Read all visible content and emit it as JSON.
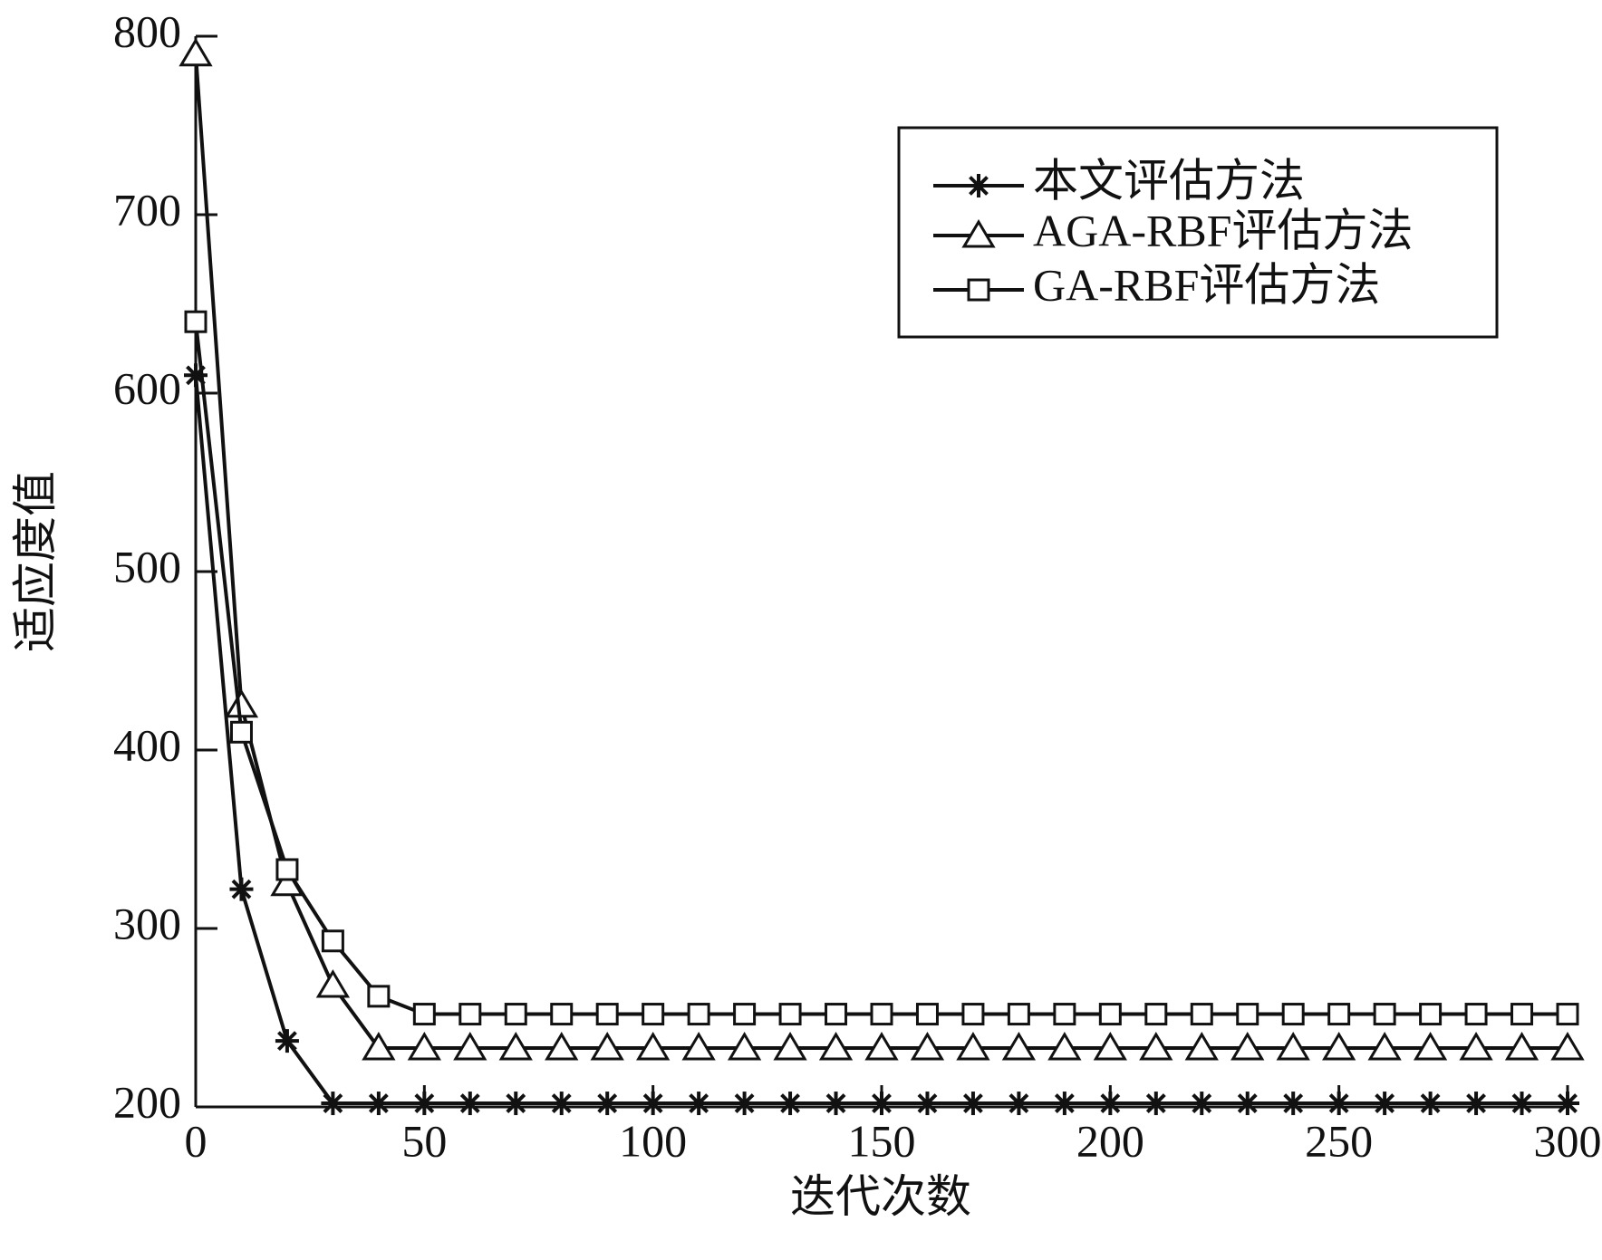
{
  "chart_data": {
    "type": "line",
    "xlabel": "迭代次数",
    "ylabel": "适应度值",
    "xlim": [
      0,
      300
    ],
    "ylim": [
      200,
      800
    ],
    "xticks": [
      "0",
      "50",
      "100",
      "150",
      "200",
      "250",
      "300"
    ],
    "yticks": [
      "200",
      "300",
      "400",
      "500",
      "600",
      "700",
      "800"
    ],
    "grid": false,
    "legend_position": "top-right",
    "x": [
      0,
      10,
      20,
      30,
      40,
      50,
      60,
      70,
      80,
      90,
      100,
      110,
      120,
      130,
      140,
      150,
      160,
      170,
      180,
      190,
      200,
      210,
      220,
      230,
      240,
      250,
      260,
      270,
      280,
      290,
      300
    ],
    "series": [
      {
        "name": "本文评估方法",
        "marker": "asterisk",
        "color": "#111111",
        "values": [
          610,
          322,
          237,
          202,
          202,
          202,
          202,
          202,
          202,
          202,
          202,
          202,
          202,
          202,
          202,
          202,
          202,
          202,
          202,
          202,
          202,
          202,
          202,
          202,
          202,
          202,
          202,
          202,
          202,
          202,
          202
        ]
      },
      {
        "name": "AGA-RBF评估方法",
        "marker": "triangle",
        "color": "#111111",
        "values": [
          790,
          425,
          325,
          268,
          233,
          233,
          233,
          233,
          233,
          233,
          233,
          233,
          233,
          233,
          233,
          233,
          233,
          233,
          233,
          233,
          233,
          233,
          233,
          233,
          233,
          233,
          233,
          233,
          233,
          233,
          233
        ]
      },
      {
        "name": "GA-RBF评估方法",
        "marker": "square",
        "color": "#111111",
        "values": [
          640,
          410,
          333,
          293,
          262,
          252,
          252,
          252,
          252,
          252,
          252,
          252,
          252,
          252,
          252,
          252,
          252,
          252,
          252,
          252,
          252,
          252,
          252,
          252,
          252,
          252,
          252,
          252,
          252,
          252,
          252
        ]
      }
    ]
  }
}
